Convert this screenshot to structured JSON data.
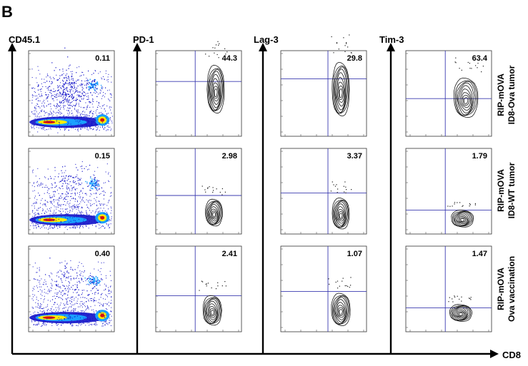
{
  "panel_letter": "B",
  "x_axis_label": "CD8",
  "columns": [
    {
      "y_axis_label": "CD45.1",
      "plot_type": "pseudocolor-dot"
    },
    {
      "y_axis_label": "PD-1",
      "plot_type": "contour"
    },
    {
      "y_axis_label": "Lag-3",
      "plot_type": "contour"
    },
    {
      "y_axis_label": "Tim-3",
      "plot_type": "contour"
    }
  ],
  "rows": [
    {
      "label_line1": "RIP-mOVA",
      "label_line2": "ID8-Ova tumor"
    },
    {
      "label_line1": "RIP-mOVA",
      "label_line2": "ID8-WT tumor"
    },
    {
      "label_line1": "RIP-mOVA",
      "label_line2": "Ova vaccination"
    }
  ],
  "colors": {
    "gate_line": "#3b3bb0",
    "contour": "#1a1a1a",
    "density_low": "#1010c8",
    "density_mid": "#1aa0ff",
    "density_high": "#ffee00",
    "density_peak": "#d81010"
  },
  "chart_data": [
    {
      "type": "contour",
      "column": "CD45.1",
      "row": "RIP-mOVA ID8-Ova tumor",
      "gated_percent": "0.11"
    },
    {
      "type": "contour",
      "column": "PD-1",
      "row": "RIP-mOVA ID8-Ova tumor",
      "gated_percent": "44.3"
    },
    {
      "type": "contour",
      "column": "Lag-3",
      "row": "RIP-mOVA ID8-Ova tumor",
      "gated_percent": "29.8"
    },
    {
      "type": "contour",
      "column": "Tim-3",
      "row": "RIP-mOVA ID8-Ova tumor",
      "gated_percent": "63.4"
    },
    {
      "type": "contour",
      "column": "CD45.1",
      "row": "RIP-mOVA ID8-WT tumor",
      "gated_percent": "0.15"
    },
    {
      "type": "contour",
      "column": "PD-1",
      "row": "RIP-mOVA ID8-WT tumor",
      "gated_percent": "2.98"
    },
    {
      "type": "contour",
      "column": "Lag-3",
      "row": "RIP-mOVA ID8-WT tumor",
      "gated_percent": "3.37"
    },
    {
      "type": "contour",
      "column": "Tim-3",
      "row": "RIP-mOVA ID8-WT tumor",
      "gated_percent": "1.79"
    },
    {
      "type": "contour",
      "column": "CD45.1",
      "row": "RIP-mOVA Ova vaccination",
      "gated_percent": "0.40"
    },
    {
      "type": "contour",
      "column": "PD-1",
      "row": "RIP-mOVA Ova vaccination",
      "gated_percent": "2.41"
    },
    {
      "type": "contour",
      "column": "Lag-3",
      "row": "RIP-mOVA Ova vaccination",
      "gated_percent": "1.07"
    },
    {
      "type": "contour",
      "column": "Tim-3",
      "row": "RIP-mOVA Ova vaccination",
      "gated_percent": "1.47"
    }
  ]
}
